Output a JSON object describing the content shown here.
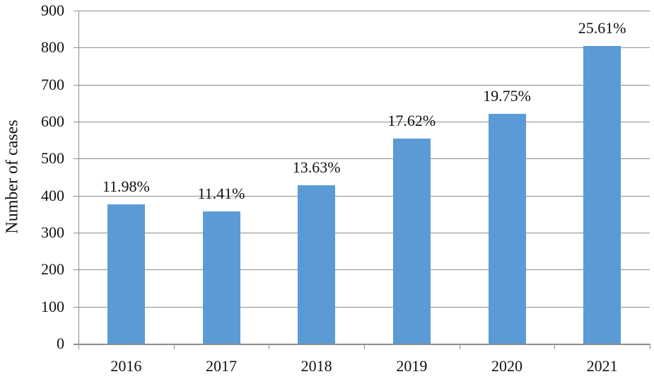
{
  "chart_data": {
    "type": "bar",
    "title": "",
    "xlabel": "",
    "ylabel": "Number of cases",
    "categories": [
      "2016",
      "2017",
      "2018",
      "2019",
      "2020",
      "2021"
    ],
    "values": [
      376,
      358,
      428,
      554,
      621,
      805
    ],
    "data_labels": [
      "11.98%",
      "11.41%",
      "13.63%",
      "17.62%",
      "19.75%",
      "25.61%"
    ],
    "ylim": [
      0,
      900
    ],
    "yticks": [
      0,
      100,
      200,
      300,
      400,
      500,
      600,
      700,
      800,
      900
    ],
    "grid": true,
    "legend": null,
    "bar_color": "#5b9bd5"
  }
}
